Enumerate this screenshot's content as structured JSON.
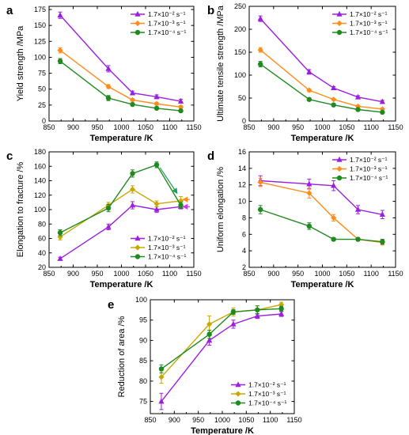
{
  "colors": {
    "purple": "#9b1fe0",
    "orange": "#ff8c1a",
    "green": "#1f8a1f",
    "olive": "#c8a800",
    "green_arrow": "#1aa05a",
    "orange_arrow": "#ff8c1a",
    "purple_arrow": "#c83cf0"
  },
  "chart_data": [
    {
      "panel": "a",
      "type": "line",
      "xlabel": "Temperature /K",
      "ylabel": "Yield strength /MPa",
      "xlim": [
        850,
        1150
      ],
      "ylim": [
        0,
        180
      ],
      "xticks": [
        "850",
        "900",
        "950",
        "1000",
        "1050",
        "1100",
        "1150"
      ],
      "yticks": [
        "0",
        "25",
        "50",
        "75",
        "100",
        "125",
        "150",
        "175"
      ],
      "legend_position": "top-right",
      "series": [
        {
          "name": "1.7×10⁻² s⁻¹",
          "color": "#9b1fe0",
          "marker": "triangle",
          "x": [
            873,
            973,
            1023,
            1073,
            1123
          ],
          "y": [
            166,
            82,
            44,
            38,
            31
          ],
          "err": [
            5,
            5,
            3,
            3,
            3
          ]
        },
        {
          "name": "1.7×10⁻³ s⁻¹",
          "color": "#ff8c1a",
          "marker": "diamond",
          "x": [
            873,
            973,
            1023,
            1073,
            1123
          ],
          "y": [
            111,
            54,
            33,
            27,
            22
          ],
          "err": [
            4,
            3,
            2,
            2,
            2
          ]
        },
        {
          "name": "1.7×10⁻⁴ s⁻¹",
          "color": "#1f8a1f",
          "marker": "circle",
          "x": [
            873,
            973,
            1023,
            1073,
            1123
          ],
          "y": [
            94,
            36,
            26,
            20,
            16
          ],
          "err": [
            4,
            4,
            2,
            2,
            2
          ]
        }
      ]
    },
    {
      "panel": "b",
      "type": "line",
      "xlabel": "Temperature /K",
      "ylabel": "Ultimate tensile strength /MPa",
      "xlim": [
        850,
        1150
      ],
      "ylim": [
        0,
        250
      ],
      "xticks": [
        "850",
        "900",
        "950",
        "1000",
        "1050",
        "1100",
        "1150"
      ],
      "yticks": [
        "0",
        "50",
        "100",
        "150",
        "200",
        "250"
      ],
      "legend_position": "top-right",
      "series": [
        {
          "name": "1.7×10⁻² s⁻¹",
          "color": "#9b1fe0",
          "marker": "triangle",
          "x": [
            873,
            973,
            1023,
            1073,
            1123
          ],
          "y": [
            223,
            107,
            72,
            52,
            42
          ],
          "err": [
            6,
            5,
            3,
            3,
            3
          ]
        },
        {
          "name": "1.7×10⁻³ s⁻¹",
          "color": "#ff8c1a",
          "marker": "diamond",
          "x": [
            873,
            973,
            1023,
            1073,
            1123
          ],
          "y": [
            155,
            67,
            47,
            32,
            26
          ],
          "err": [
            5,
            3,
            2,
            2,
            2
          ]
        },
        {
          "name": "1.7×10⁻⁴ s⁻¹",
          "color": "#1f8a1f",
          "marker": "circle",
          "x": [
            873,
            973,
            1023,
            1073,
            1123
          ],
          "y": [
            124,
            47,
            35,
            25,
            19
          ],
          "err": [
            6,
            3,
            2,
            2,
            2
          ]
        }
      ]
    },
    {
      "panel": "c",
      "type": "line",
      "xlabel": "Temperature /K",
      "ylabel": "Elongation to fracture /%",
      "xlim": [
        850,
        1150
      ],
      "ylim": [
        20,
        180
      ],
      "xticks": [
        "850",
        "900",
        "950",
        "1000",
        "1050",
        "1100",
        "1150"
      ],
      "yticks": [
        "20",
        "40",
        "60",
        "80",
        "100",
        "120",
        "140",
        "160",
        "180"
      ],
      "legend_position": "bottom-right",
      "series": [
        {
          "name": "1.7×10⁻² s⁻¹",
          "color": "#9b1fe0",
          "marker": "triangle",
          "x": [
            873,
            973,
            1023,
            1073,
            1123
          ],
          "y": [
            32,
            76,
            106,
            100,
            104
          ],
          "err": [
            2,
            4,
            5,
            4,
            3
          ]
        },
        {
          "name": "1.7×10⁻³ s⁻¹",
          "color": "#c8a800",
          "marker": "diamond",
          "x": [
            873,
            973,
            1023,
            1073,
            1123
          ],
          "y": [
            62,
            106,
            128,
            108,
            112
          ],
          "err": [
            4,
            4,
            5,
            4,
            6
          ]
        },
        {
          "name": "1.7×10⁻⁴ s⁻¹",
          "color": "#1f8a1f",
          "marker": "circle",
          "x": [
            873,
            973,
            1023,
            1073,
            1123
          ],
          "y": [
            68,
            102,
            150,
            162,
            106
          ],
          "err": [
            4,
            5,
            5,
            4,
            4
          ]
        }
      ],
      "annotations": [
        {
          "type": "arrow",
          "color": "#1aa05a",
          "from": [
            1080,
            158
          ],
          "to": [
            1115,
            123
          ]
        },
        {
          "type": "arrow",
          "color": "#ff8c1a",
          "from": [
            1142,
            114
          ],
          "to": [
            1128,
            114
          ]
        },
        {
          "type": "arrow",
          "color": "#c83cf0",
          "from": [
            1142,
            104
          ],
          "to": [
            1128,
            104
          ]
        }
      ]
    },
    {
      "panel": "d",
      "type": "line",
      "xlabel": "Temperature /K",
      "ylabel": "Uniform elongation /%",
      "xlim": [
        850,
        1150
      ],
      "ylim": [
        2,
        16
      ],
      "xticks": [
        "850",
        "900",
        "950",
        "1000",
        "1050",
        "1100",
        "1150"
      ],
      "yticks": [
        "2",
        "4",
        "6",
        "8",
        "10",
        "12",
        "14",
        "16"
      ],
      "legend_position": "top-right",
      "series": [
        {
          "name": "1.7×10⁻² s⁻¹",
          "color": "#9b1fe0",
          "marker": "triangle",
          "x": [
            873,
            973,
            1023,
            1073,
            1123
          ],
          "y": [
            12.5,
            12.1,
            11.9,
            9.0,
            8.4
          ],
          "err": [
            0.6,
            0.6,
            0.6,
            0.5,
            0.5
          ]
        },
        {
          "name": "1.7×10⁻³ s⁻¹",
          "color": "#ff8c1a",
          "marker": "diamond",
          "x": [
            873,
            973,
            1023,
            1073,
            1123
          ],
          "y": [
            12.3,
            11.0,
            8.0,
            5.4,
            5.0
          ],
          "err": [
            0.5,
            0.6,
            0.4,
            0.2,
            0.3
          ]
        },
        {
          "name": "1.7×10⁻⁴ s⁻¹",
          "color": "#1f8a1f",
          "marker": "circle",
          "x": [
            873,
            973,
            1023,
            1073,
            1123
          ],
          "y": [
            9.0,
            7.0,
            5.4,
            5.4,
            5.1
          ],
          "err": [
            0.5,
            0.4,
            0.2,
            0.2,
            0.3
          ]
        }
      ]
    },
    {
      "panel": "e",
      "type": "line",
      "xlabel": "Temperature /K",
      "ylabel": "Reduction of area /%",
      "xlim": [
        850,
        1150
      ],
      "ylim": [
        72,
        100
      ],
      "xticks": [
        "850",
        "900",
        "950",
        "1000",
        "1050",
        "1100",
        "1150"
      ],
      "yticks": [
        "75",
        "80",
        "85",
        "90",
        "95",
        "100"
      ],
      "legend_position": "bottom-right",
      "series": [
        {
          "name": "1.7×10⁻² s⁻¹",
          "color": "#9b1fe0",
          "marker": "triangle",
          "x": [
            873,
            973,
            1023,
            1073,
            1123
          ],
          "y": [
            75,
            90,
            94,
            96,
            96.5
          ],
          "err": [
            2,
            1.2,
            1,
            0.6,
            0.6
          ]
        },
        {
          "name": "1.7×10⁻³ s⁻¹",
          "color": "#c8a800",
          "marker": "diamond",
          "x": [
            873,
            973,
            1023,
            1073,
            1123
          ],
          "y": [
            81,
            94,
            97,
            97.5,
            98.8
          ],
          "err": [
            1.5,
            2,
            1,
            1,
            0.6
          ]
        },
        {
          "name": "1.7×10⁻⁴ s⁻¹",
          "color": "#1f8a1f",
          "marker": "circle",
          "x": [
            873,
            973,
            1023,
            1073,
            1123
          ],
          "y": [
            83,
            91.5,
            97,
            97.5,
            97.8
          ],
          "err": [
            1,
            1,
            0.6,
            1,
            0.6
          ]
        }
      ]
    }
  ]
}
